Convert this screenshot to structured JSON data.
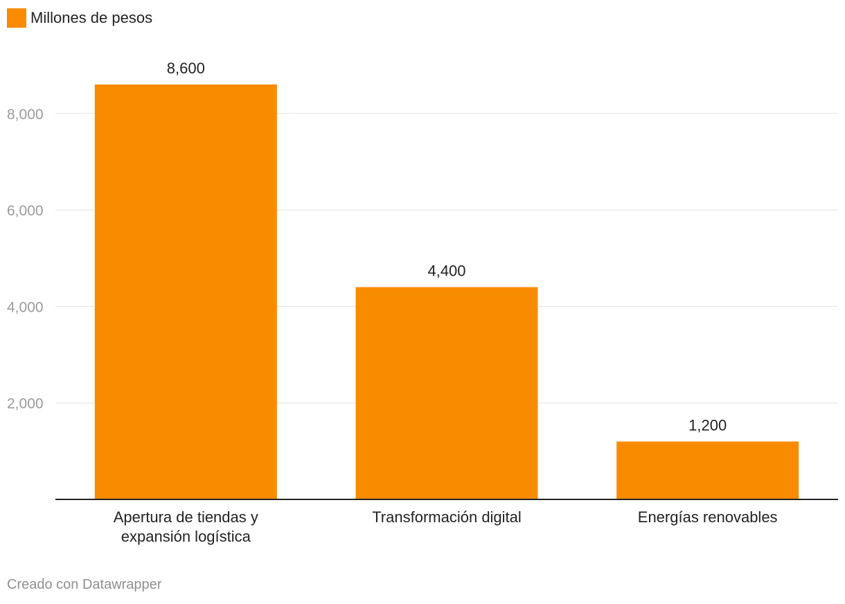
{
  "legend": {
    "label": "Millones de pesos",
    "color": "#f98b00"
  },
  "credit": "Creado con Datawrapper",
  "chart_data": {
    "type": "bar",
    "categories": [
      [
        "Apertura de tiendas y",
        "expansión logística"
      ],
      [
        "Transformación digital"
      ],
      [
        "Energías renovables"
      ]
    ],
    "values": [
      8600,
      4400,
      1200
    ],
    "value_labels": [
      "8,600",
      "4,400",
      "1,200"
    ],
    "ylim": [
      0,
      8600
    ],
    "yticks": [
      2000,
      4000,
      6000,
      8000
    ],
    "ytick_labels": [
      "2,000",
      "4,000",
      "6,000",
      "8,000"
    ],
    "bar_color": "#f98b00",
    "grid": true,
    "legend_position": "top-left"
  }
}
